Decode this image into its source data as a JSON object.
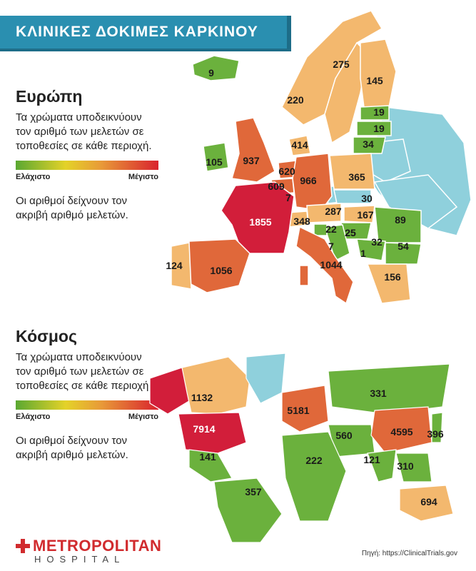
{
  "title": "ΚΛΙΝΙΚΕΣ ΔΟΚΙΜΕΣ ΚΑΡΚΙΝΟΥ",
  "colors": {
    "banner": "#2a8fb0",
    "low": "#5aa832",
    "mid": "#e89a38",
    "high": "#d9232e",
    "nodata": "#8fd0dc"
  },
  "europe": {
    "heading": "Ευρώπη",
    "description": "Τα χρώματα υποδεικνύουν τον αριθμό των μελετών σε τοποθεσίες σε κάθε περιοχή.",
    "legend_min": "Ελάχιστο",
    "legend_max": "Μέγιστο",
    "note": "Οι αριθμοί δείχνουν τον ακριβή αριθμό μελετών.",
    "values": {
      "iceland": "9",
      "norway": "275",
      "sweden": "220",
      "finland": "145",
      "estonia": "19",
      "latvia": "19",
      "lithuania": "34",
      "denmark": "414",
      "ireland": "105",
      "uk": "937",
      "netherlands": "620",
      "belgium": "609",
      "luxembourg": "7",
      "germany": "966",
      "poland": "365",
      "czechia": "30",
      "austria": "287",
      "slovakia": "167",
      "switzerland": "348",
      "slovenia": "22",
      "croatia": "25",
      "hungary": "25",
      "bosnia": "7",
      "serbia": "32",
      "montenegro": "1",
      "romania": "89",
      "bulgaria": "54",
      "greece": "156",
      "france": "1855",
      "spain": "1056",
      "portugal": "124",
      "italy": "1044"
    }
  },
  "world": {
    "heading": "Κόσμος",
    "description": "Τα χρώματα υποδεικνύουν τον αριθμό των μελετών σε τοποθεσίες σε κάθε περιοχή.",
    "legend_min": "Ελάχιστο",
    "legend_max": "Μέγιστο",
    "note": "Οι αριθμοί δείχνουν τον ακριβή αριθμό μελετών.",
    "values": {
      "canada": "1132",
      "usa": "7914",
      "mexico": "141",
      "south_america": "357",
      "europe": "5181",
      "russia": "331",
      "middle_east": "560",
      "africa": "222",
      "india": "121",
      "china": "4595",
      "japan": "396",
      "se_asia": "310",
      "australia": "694"
    }
  },
  "logo": {
    "main": "METROPOLITAN",
    "sub": "HOSPITAL"
  },
  "source": "Πηγή: https://ClinicalTrials.gov"
}
